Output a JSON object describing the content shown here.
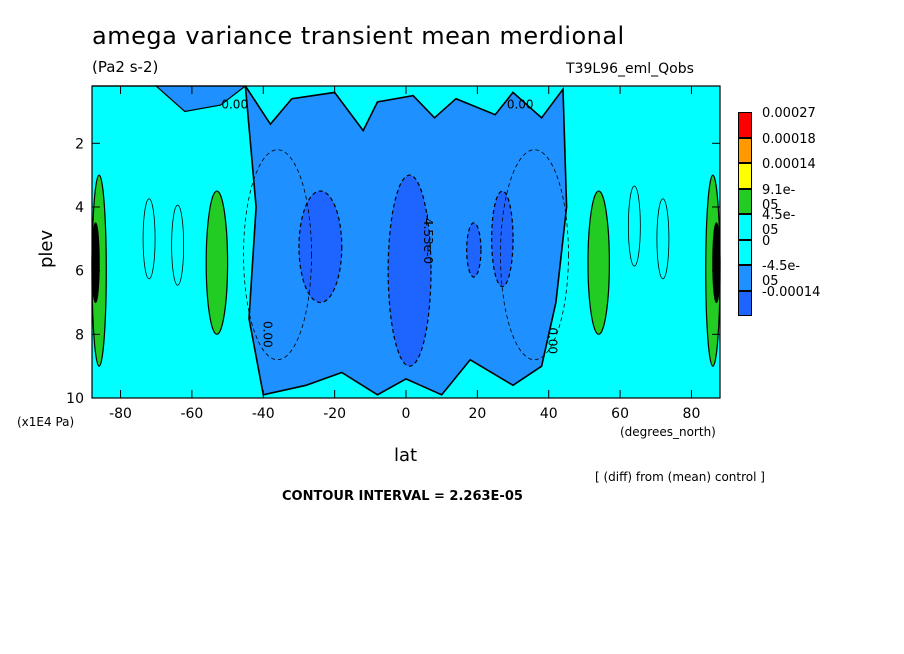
{
  "header": {
    "title": "amega variance transient mean merdional",
    "units": "(Pa2 s-2)",
    "run_label": "T39L96_eml_Qobs"
  },
  "footer": {
    "diff_note": "[ (diff) from (mean) control ]",
    "contour_interval": "CONTOUR INTERVAL = 2.263E-05"
  },
  "chart_data": {
    "type": "heatmap",
    "title": "amega variance transient mean merdional",
    "xlabel": "lat",
    "x_units": "(degrees_north)",
    "ylabel": "plev",
    "y_multiplier": "(x1E4 Pa)",
    "xlim": [
      -88,
      88
    ],
    "ylim": [
      10,
      0.2
    ],
    "x_ticks": [
      -80,
      -60,
      -40,
      -20,
      0,
      20,
      40,
      60,
      80
    ],
    "x_tick_labels": [
      "-80",
      "-60",
      "-40",
      "-20",
      "0",
      "20",
      "40",
      "60",
      "80"
    ],
    "y_ticks": [
      2,
      4,
      6,
      8,
      10
    ],
    "y_tick_labels": [
      "2",
      "4",
      "6",
      "8",
      "10"
    ],
    "contour_labels": [
      "0.00",
      "0.00",
      "0.00",
      "0.00",
      "-4.53e-0"
    ],
    "legend": {
      "labels": [
        "0.00027",
        "0.00018",
        "0.00014",
        "9.1e-05",
        "4.5e-05",
        "0",
        "-4.5e-05",
        "-0.00014"
      ],
      "colors": [
        "#ff0000",
        "#ff9900",
        "#ffff00",
        "#22cc22",
        "#00ffff",
        "#00ffff",
        "#1e90ff",
        "#1e64ff"
      ]
    },
    "regions": [
      {
        "level": "negative",
        "lat": [
          -45,
          45
        ],
        "plev": [
          0.2,
          10
        ]
      },
      {
        "level": "strong-negative",
        "lat": [
          -30,
          -18
        ],
        "plev": [
          3.5,
          7
        ]
      },
      {
        "level": "strong-negative",
        "lat": [
          -5,
          7
        ],
        "plev": [
          3,
          9
        ]
      },
      {
        "level": "strong-negative",
        "lat": [
          24,
          30
        ],
        "plev": [
          3.5,
          6.5
        ]
      },
      {
        "level": "strong-negative",
        "lat": [
          17,
          21
        ],
        "plev": [
          4.5,
          6.2
        ]
      },
      {
        "level": "positive",
        "lat": [
          -56,
          -50
        ],
        "plev": [
          3.5,
          8
        ]
      },
      {
        "level": "positive",
        "lat": [
          51,
          57
        ],
        "plev": [
          3.5,
          8
        ]
      },
      {
        "level": "positive",
        "lat": [
          -88,
          -84
        ],
        "plev": [
          3,
          9
        ]
      },
      {
        "level": "positive",
        "lat": [
          84,
          88
        ],
        "plev": [
          3,
          9
        ]
      },
      {
        "level": "strong-positive",
        "lat": [
          -88,
          -86
        ],
        "plev": [
          4.5,
          7
        ]
      },
      {
        "level": "strong-positive",
        "lat": [
          86,
          88
        ],
        "plev": [
          4.5,
          7
        ]
      }
    ],
    "colors": {
      "background": "#00ffff",
      "negative": "#1e90ff",
      "strong_negative": "#1e64ff",
      "positive": "#22cc22",
      "strong_positive": "#000000"
    }
  }
}
